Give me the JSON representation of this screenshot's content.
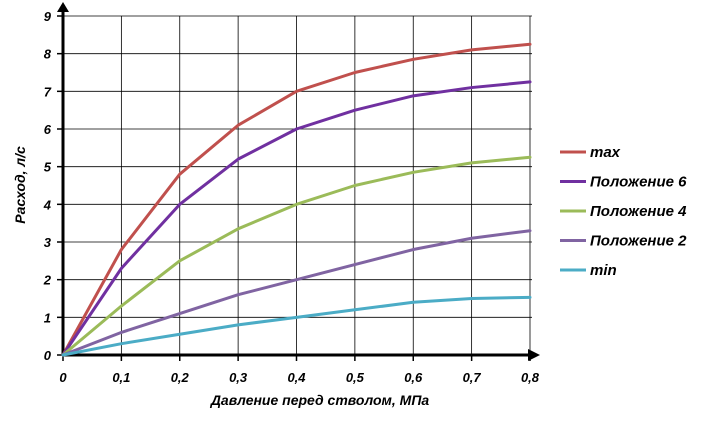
{
  "chart_data": {
    "type": "line",
    "xlabel": "Давление перед стволом, МПа",
    "ylabel": "Расход, л/с",
    "xlim": [
      0,
      0.8
    ],
    "ylim": [
      0,
      9
    ],
    "grid": true,
    "legend_position": "right",
    "x": [
      0,
      0.1,
      0.2,
      0.3,
      0.4,
      0.5,
      0.6,
      0.7,
      0.8
    ],
    "x_tick_labels": [
      "0",
      "0,1",
      "0,2",
      "0,3",
      "0,4",
      "0,5",
      "0,6",
      "0,7",
      "0,8"
    ],
    "y_tick_labels": [
      "0",
      "1",
      "2",
      "3",
      "4",
      "5",
      "6",
      "7",
      "8",
      "9"
    ],
    "series": [
      {
        "name": "max",
        "color": "#c0504d",
        "values": [
          0,
          2.8,
          4.8,
          6.1,
          7.0,
          7.5,
          7.85,
          8.1,
          8.25
        ]
      },
      {
        "name": "Положение 6",
        "color": "#7030a0",
        "values": [
          0,
          2.3,
          4.0,
          5.2,
          6.0,
          6.5,
          6.88,
          7.1,
          7.25
        ]
      },
      {
        "name": "Положение 4",
        "color": "#9bbb59",
        "values": [
          0,
          1.3,
          2.5,
          3.35,
          4.0,
          4.5,
          4.85,
          5.1,
          5.25
        ]
      },
      {
        "name": "Положение 2",
        "color": "#8064a2",
        "values": [
          0,
          0.6,
          1.1,
          1.6,
          2.0,
          2.4,
          2.8,
          3.1,
          3.3
        ]
      },
      {
        "name": "min",
        "color": "#4bacc6",
        "values": [
          0,
          0.3,
          0.55,
          0.8,
          1.0,
          1.2,
          1.4,
          1.5,
          1.53
        ]
      }
    ]
  }
}
